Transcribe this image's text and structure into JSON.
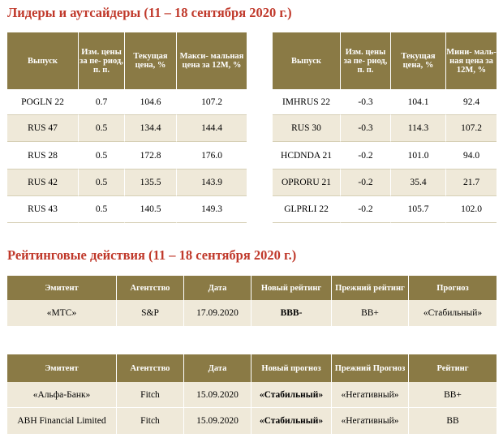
{
  "section1": {
    "title": "Лидеры и аутсайдеры (11 – 18 сентября 2020 г.)"
  },
  "leaders": {
    "headers": [
      "Выпуск",
      "Изм. цены за пе- риод, п. п.",
      "Текущая цена, %",
      "Макси- мальная цена за 12М, %"
    ],
    "rows": [
      [
        "POGLN 22",
        "0.7",
        "104.6",
        "107.2"
      ],
      [
        "RUS 47",
        "0.5",
        "134.4",
        "144.4"
      ],
      [
        "RUS 28",
        "0.5",
        "172.8",
        "176.0"
      ],
      [
        "RUS 42",
        "0.5",
        "135.5",
        "143.9"
      ],
      [
        "RUS 43",
        "0.5",
        "140.5",
        "149.3"
      ]
    ]
  },
  "outsiders": {
    "headers": [
      "Выпуск",
      "Изм. цены за пе- риод, п. п.",
      "Текущая цена, %",
      "Мини- маль- ная цена за 12М, %"
    ],
    "rows": [
      [
        "IMHRUS 22",
        "-0.3",
        "104.1",
        "92.4"
      ],
      [
        "RUS 30",
        "-0.3",
        "114.3",
        "107.2"
      ],
      [
        "HCDNDA 21",
        "-0.2",
        "101.0",
        "94.0"
      ],
      [
        "OPRORU 21",
        "-0.2",
        "35.4",
        "21.7"
      ],
      [
        "GLPRLI 22",
        "-0.2",
        "105.7",
        "102.0"
      ]
    ]
  },
  "section2": {
    "title": "Рейтинговые действия (11 – 18 сентября 2020 г.)"
  },
  "ratings": {
    "headers": [
      "Эмитент",
      "Агентство",
      "Дата",
      "Новый рейтинг",
      "Прежний рейтинг",
      "Прогноз"
    ],
    "rows": [
      [
        "«МТС»",
        "S&P",
        "17.09.2020",
        "BBB-",
        "BB+",
        "«Стабильный»"
      ]
    ]
  },
  "outlooks": {
    "headers": [
      "Эмитент",
      "Агентство",
      "Дата",
      "Новый прогноз",
      "Прежний Прогноз",
      "Рейтинг"
    ],
    "rows": [
      [
        "«Альфа-Банк»",
        "Fitch",
        "15.09.2020",
        "«Стабильный»",
        "«Негативный»",
        "BB+"
      ],
      [
        "ABH Financial Limited",
        "Fitch",
        "15.09.2020",
        "«Стабильный»",
        "«Негативный»",
        "BB"
      ]
    ]
  }
}
